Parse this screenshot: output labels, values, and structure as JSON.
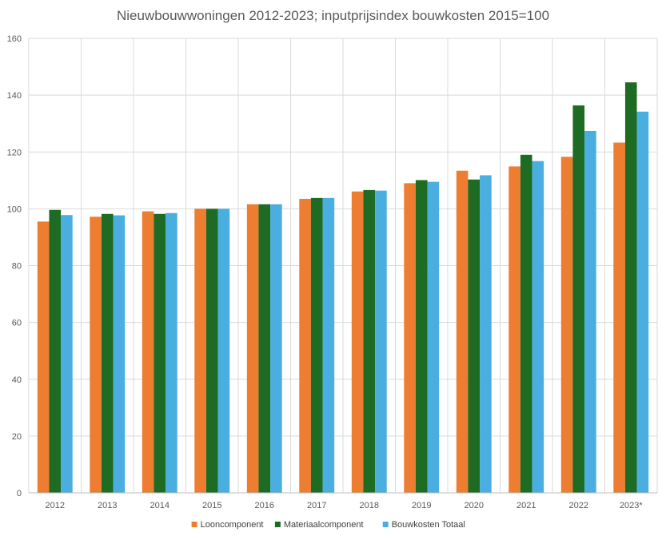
{
  "chart_data": {
    "type": "bar",
    "title": "Nieuwbouwwoningen 2012-2023; inputprijsindex bouwkosten 2015=100",
    "xlabel": "",
    "ylabel": "",
    "categories": [
      "2012",
      "2013",
      "2014",
      "2015",
      "2016",
      "2017",
      "2018",
      "2019",
      "2020",
      "2021",
      "2022",
      "2023*"
    ],
    "series": [
      {
        "name": "Looncomponent",
        "color": "#ED7D31",
        "values": [
          95.5,
          97.2,
          99.1,
          100.0,
          101.6,
          103.5,
          106.1,
          109.0,
          113.4,
          114.9,
          118.3,
          123.3
        ]
      },
      {
        "name": "Materiaalcomponent",
        "color": "#1E6B24",
        "values": [
          99.6,
          98.2,
          98.2,
          100.0,
          101.6,
          103.8,
          106.6,
          110.1,
          110.3,
          119.0,
          136.4,
          144.5
        ]
      },
      {
        "name": "Bouwkosten Totaal",
        "color": "#4BAEE0",
        "values": [
          97.8,
          97.7,
          98.5,
          100.0,
          101.6,
          103.8,
          106.4,
          109.5,
          111.8,
          116.8,
          127.4,
          134.2
        ]
      }
    ],
    "ylim": [
      0,
      160
    ],
    "yticks": [
      0,
      20,
      40,
      60,
      80,
      100,
      120,
      140,
      160
    ],
    "grid": true,
    "legend": "bottom"
  }
}
